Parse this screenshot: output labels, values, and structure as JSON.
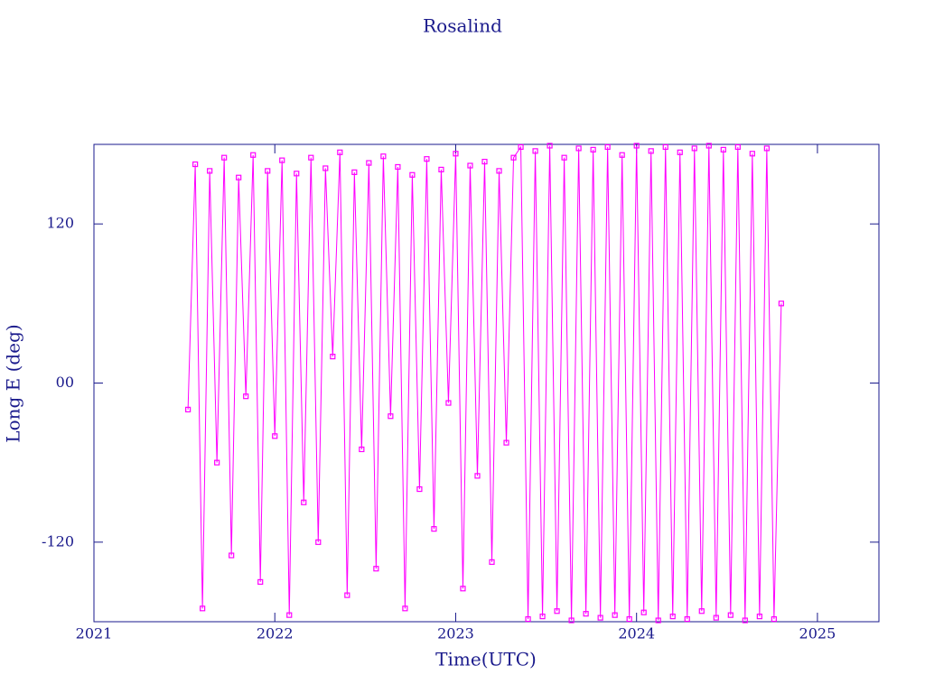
{
  "chart_data": {
    "type": "line",
    "title": "Rosalind",
    "x_label": "Time(UTC)",
    "y_label": "Long E (deg)",
    "color": "#ff00ff",
    "markers": true,
    "xlim": [
      2021,
      2025.34
    ],
    "xticks": [
      2021,
      2022,
      2023,
      2024,
      2025
    ],
    "ylim": [
      -180,
      180
    ],
    "yticks": [
      -120,
      {
        "value": 0,
        "label": "00"
      },
      120
    ],
    "x": [
      2021.52,
      2021.56,
      2021.6,
      2021.64,
      2021.68,
      2021.72,
      2021.76,
      2021.8,
      2021.84,
      2021.88,
      2021.92,
      2021.96,
      2022.0,
      2022.04,
      2022.08,
      2022.12,
      2022.16,
      2022.2,
      2022.24,
      2022.28,
      2022.32,
      2022.36,
      2022.4,
      2022.44,
      2022.48,
      2022.52,
      2022.56,
      2022.6,
      2022.64,
      2022.68,
      2022.72,
      2022.76,
      2022.8,
      2022.84,
      2022.88,
      2022.92,
      2022.96,
      2023.0,
      2023.04,
      2023.08,
      2023.12,
      2023.16,
      2023.2,
      2023.24,
      2023.28,
      2023.32,
      2023.36,
      2023.4,
      2023.44,
      2023.48,
      2023.52,
      2023.56,
      2023.6,
      2023.64,
      2023.68,
      2023.72,
      2023.76,
      2023.8,
      2023.84,
      2023.88,
      2023.92,
      2023.96,
      2024.0,
      2024.04,
      2024.08,
      2024.12,
      2024.16,
      2024.2,
      2024.24,
      2024.28,
      2024.32,
      2024.36,
      2024.4,
      2024.44,
      2024.48,
      2024.52,
      2024.56,
      2024.6,
      2024.64,
      2024.68,
      2024.72,
      2024.76,
      2024.8
    ],
    "values": [
      -20,
      165,
      -170,
      160,
      -60,
      170,
      -130,
      155,
      -10,
      172,
      -150,
      160,
      -40,
      168,
      -175,
      158,
      -90,
      170,
      -120,
      162,
      20,
      174,
      -160,
      159,
      -50,
      166,
      -140,
      171,
      -25,
      163,
      -170,
      157,
      -80,
      169,
      -110,
      161,
      -15,
      173,
      -155,
      164,
      -70,
      167,
      -135,
      160,
      -45,
      170,
      178,
      -178,
      175,
      -176,
      179,
      -172,
      170,
      -179,
      177,
      -174,
      176,
      -177,
      178,
      -175,
      172,
      -178,
      179,
      -173,
      175,
      -179,
      178,
      -176,
      174,
      -178,
      177,
      -172,
      179,
      -177,
      176,
      -175,
      178,
      -179,
      173,
      -176,
      177,
      -178,
      60
    ]
  }
}
